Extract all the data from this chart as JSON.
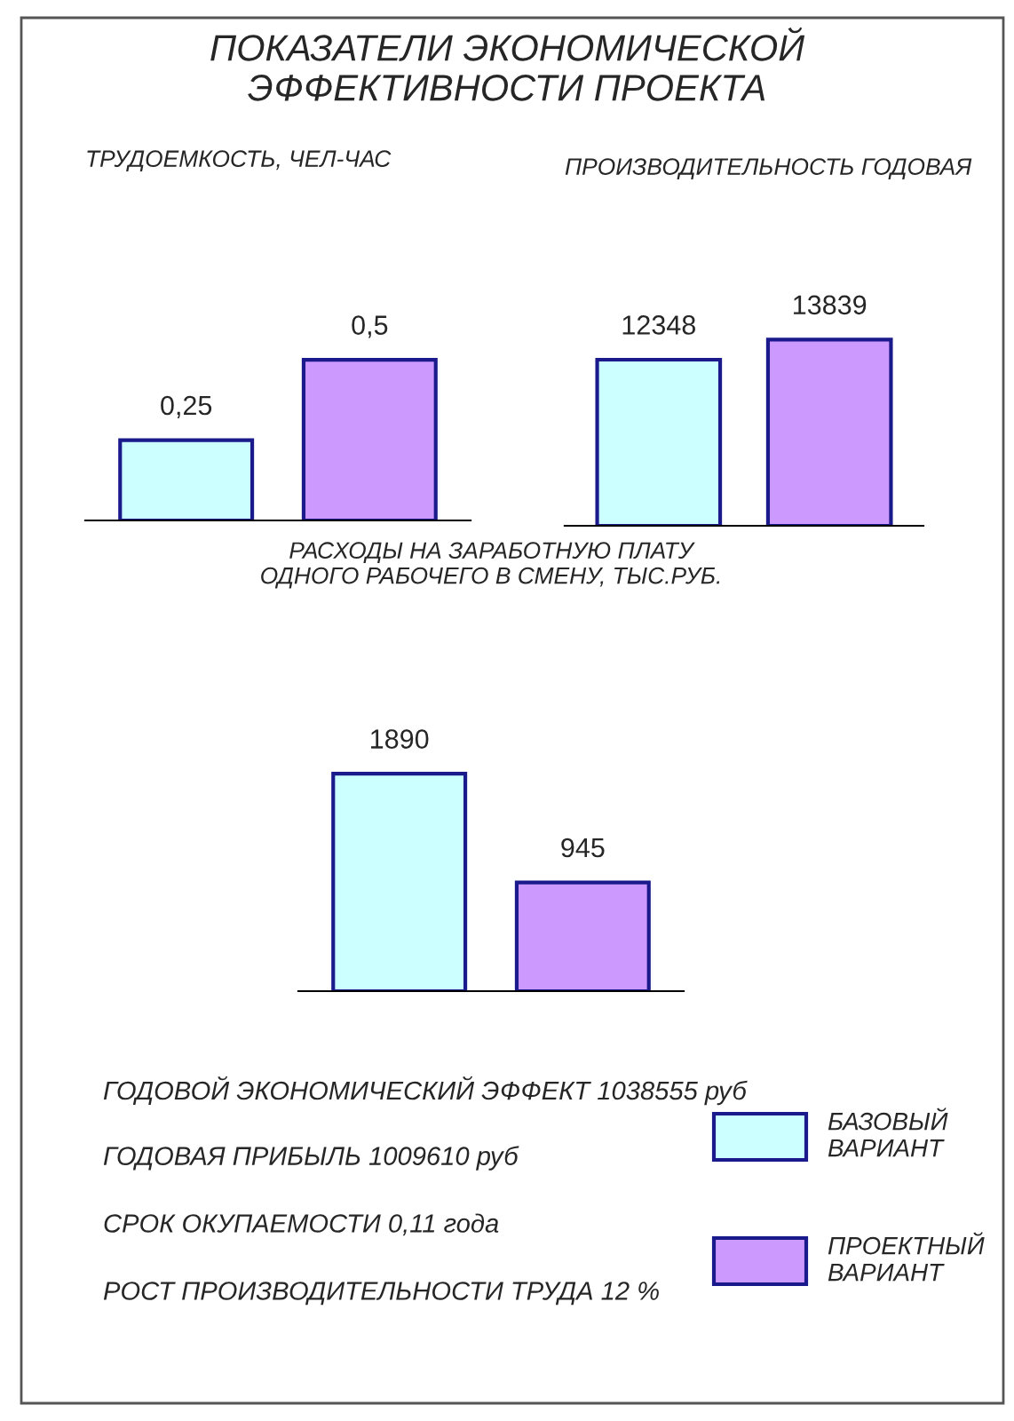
{
  "chart_data": [
    {
      "type": "other",
      "title": "ПОКАЗАТЕЛИ ЭКОНОМИЧЕСКОЙ\nЭФФЕКТИВНОСТИ ПРОЕКТА"
    },
    {
      "type": "bar",
      "title": "ТРУДОЕМКОСТЬ, ЧЕЛ-ЧАС",
      "categories": [
        null,
        null
      ],
      "values": [
        0.25,
        0.5
      ],
      "colors": [
        "#ccffff",
        "#cc99ff"
      ],
      "value_labels": [
        "0,25",
        "0,5"
      ]
    },
    {
      "type": "bar",
      "title": "ПРОИЗВОДИТЕЛЬНОСТЬ ГОДОВАЯ",
      "categories": [
        null,
        null
      ],
      "values": [
        12348,
        13839
      ],
      "colors": [
        "#ccffff",
        "#cc99ff"
      ],
      "value_labels": [
        "12348",
        "13839"
      ]
    },
    {
      "type": "bar",
      "title": "РАСХОДЫ НА ЗАРАБОТНУЮ ПЛАТУ\nОДНОГО РАБОЧЕГО В СМЕНУ, ТЫС.РУБ.",
      "categories": [
        null,
        null
      ],
      "values": [
        1890,
        945
      ],
      "colors": [
        "#ccffff",
        "#cc99ff"
      ],
      "value_labels": [
        "1890",
        "945"
      ]
    },
    {
      "type": "other",
      "annotations": [
        "ГОДОВОЙ ЭКОНОМИЧЕСКИЙ ЭФФЕКТ 1038555 руб",
        "ГОДОВАЯ ПРИБЫЛЬ 1009610 руб",
        "СРОК ОКУПАЕМОСТИ 0,11 года",
        "РОСТ ПРОИЗВОДИТЕЛЬНОСТИ ТРУДА 12 %",
        "БАЗОВЫЙ\nВАРИАНТ",
        "ПРОЕКТНЫЙ\nВАРИАНТ"
      ]
    }
  ]
}
